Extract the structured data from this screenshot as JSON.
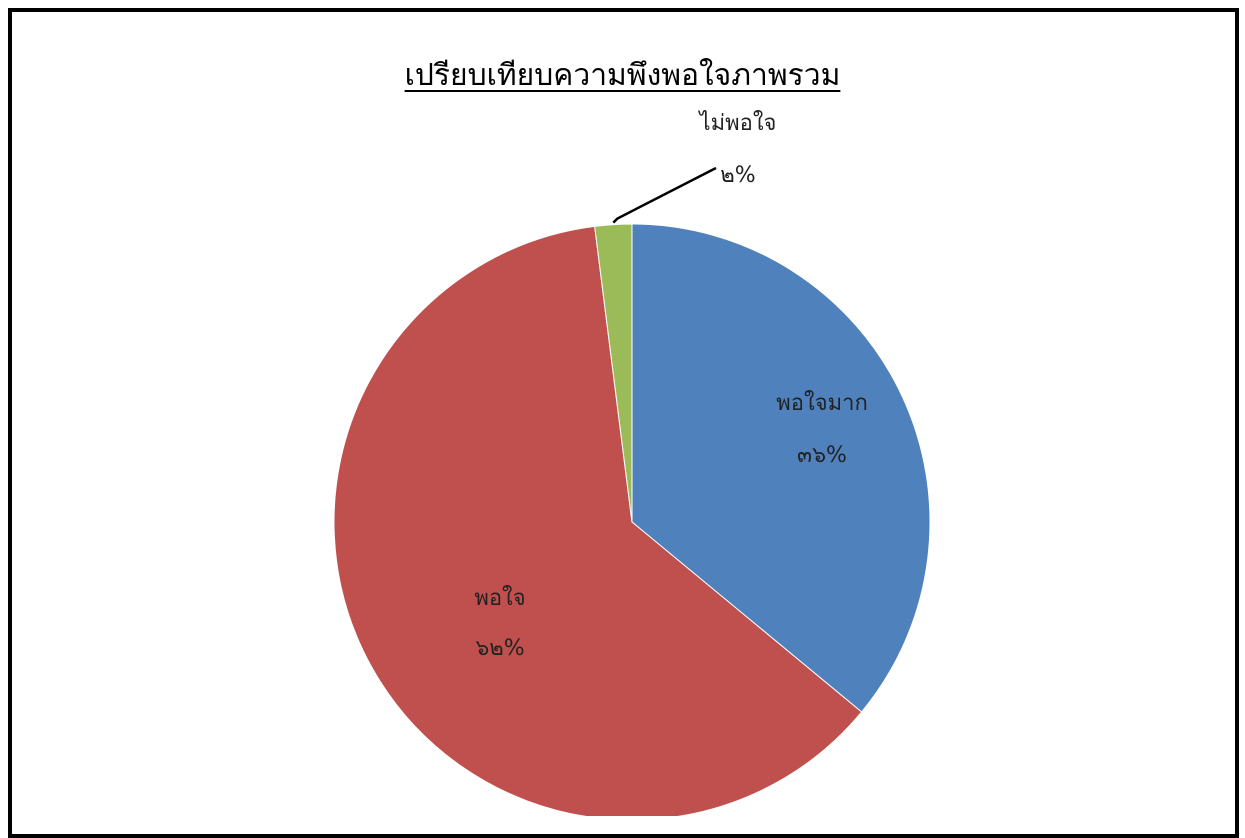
{
  "chart_data": {
    "type": "pie",
    "title": "เปรียบเทียบความพึงพอใจภาพรวม",
    "slices": [
      {
        "label": "พอใจมาก",
        "value": 36,
        "value_label": "๓๖%",
        "color": "#4F81BD"
      },
      {
        "label": "พอใจ",
        "value": 62,
        "value_label": "๖๒%",
        "color": "#C0504D"
      },
      {
        "label": "ไม่พอใจ",
        "value": 2,
        "value_label": "๒%",
        "color": "#9BBB59"
      }
    ],
    "legend": "none",
    "start_angle": "12 o'clock",
    "direction": "clockwise"
  }
}
